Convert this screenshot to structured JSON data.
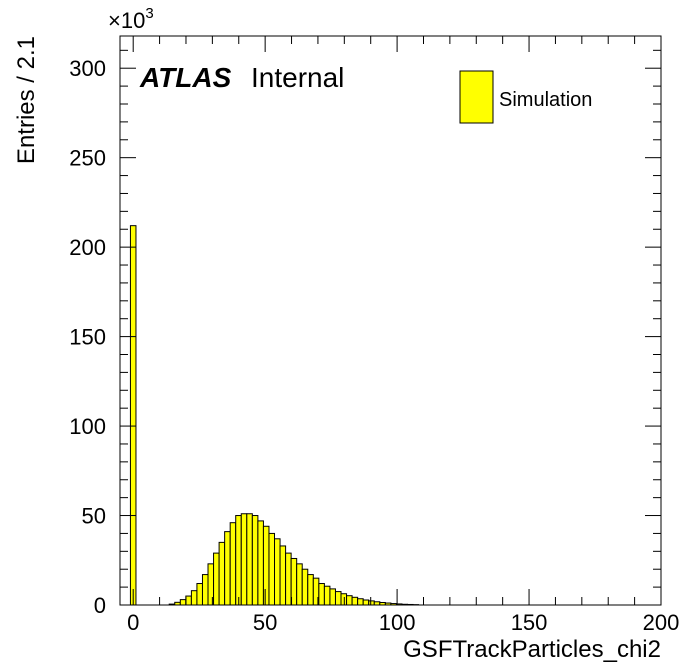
{
  "chart_data": {
    "type": "bar",
    "title": "",
    "xlabel": "GSFTrackParticles_chi2",
    "ylabel": "Entries / 2.1",
    "y_multiplier": "×10",
    "y_multiplier_exponent": "3",
    "xlim": [
      -5,
      200
    ],
    "ylim": [
      0,
      318
    ],
    "x_ticks": [
      0,
      50,
      100,
      150,
      200
    ],
    "x_tick_labels": [
      "0",
      "50",
      "100",
      "150",
      "200"
    ],
    "y_ticks": [
      0,
      50,
      100,
      150,
      200,
      250,
      300
    ],
    "y_tick_labels": [
      "0",
      "50",
      "100",
      "150",
      "200",
      "250",
      "300"
    ],
    "bin_width": 2.1,
    "bins_start": -1.05,
    "series": [
      {
        "name": "Simulation",
        "color": "#ffff00",
        "values": [
          212,
          0,
          0,
          0,
          0,
          0,
          0,
          0.5,
          1.5,
          3,
          5,
          8,
          12,
          17,
          23,
          29,
          35,
          41,
          46,
          50,
          51,
          51,
          50,
          47,
          44,
          40,
          37,
          33,
          29,
          26,
          23,
          20,
          17,
          15,
          12,
          10.5,
          9,
          7.5,
          6.3,
          5.2,
          4.3,
          3.5,
          2.8,
          2.3,
          1.8,
          1.4,
          1.1,
          0.8,
          0.6,
          0.4,
          0.3,
          0.2
        ]
      }
    ],
    "legend": {
      "position": "top-right"
    }
  },
  "annotations": {
    "atlas": "ATLAS",
    "internal": "Internal"
  },
  "legend_label": "Simulation"
}
